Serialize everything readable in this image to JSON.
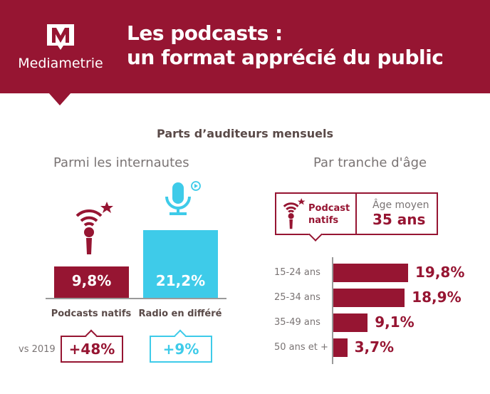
{
  "header": {
    "brand": "Mediametrie",
    "title_line1": "Les podcasts :",
    "title_line2": "un format apprécié du public"
  },
  "subtitle": "Parts d’auditeurs mensuels",
  "left": {
    "section_title": "Parmi les internautes",
    "vs_label": "vs 2019"
  },
  "right": {
    "section_title": "Par tranche d'âge",
    "box_label_line1": "Podcast",
    "box_label_line2": "natifs",
    "avg_label": "Âge moyen",
    "avg_value": "35 ans"
  },
  "colors": {
    "brand": "#961532",
    "cyan": "#3ecbe9"
  },
  "chart_data": [
    {
      "type": "bar",
      "categories": [
        "Podcasts natifs",
        "Radio en différé"
      ],
      "values": [
        9.8,
        21.2
      ],
      "labels": [
        "9,8%",
        "21,2%"
      ],
      "vs_2019": [
        "+48%",
        "+9%"
      ],
      "icons": [
        "podcast-icon",
        "microphone-replay-icon"
      ],
      "colors": [
        "#961532",
        "#3ecbe9"
      ]
    },
    {
      "type": "bar",
      "orientation": "horizontal",
      "categories": [
        "15-24 ans",
        "25-34 ans",
        "35-49 ans",
        "50 ans et +"
      ],
      "values": [
        19.8,
        18.9,
        9.1,
        3.7
      ],
      "labels": [
        "19,8%",
        "18,9%",
        "9,1%",
        "3,7%"
      ],
      "color": "#961532"
    }
  ]
}
